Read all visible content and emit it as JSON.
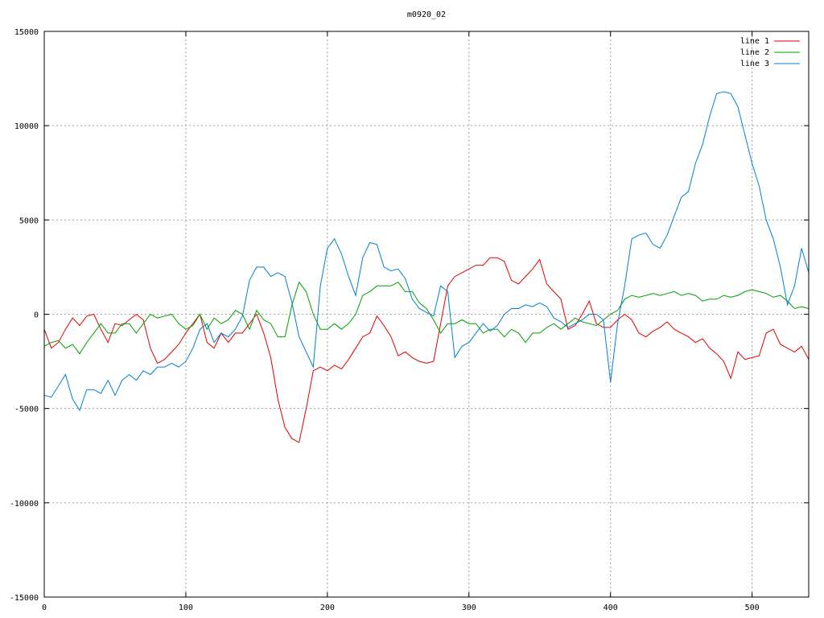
{
  "chart_data": {
    "type": "line",
    "title": "m0920_02",
    "xlabel": "",
    "ylabel": "",
    "xlim": [
      0,
      540
    ],
    "ylim": [
      -15000,
      15000
    ],
    "x_ticks": [
      0,
      100,
      200,
      300,
      400,
      500
    ],
    "y_ticks": [
      -15000,
      -10000,
      -5000,
      0,
      5000,
      10000,
      15000
    ],
    "grid": true,
    "legend_position": "top-right",
    "colors": {
      "line 1": "#e00000",
      "line 2": "#00a000",
      "line 3": "#0080d0"
    },
    "series": [
      {
        "name": "line 1",
        "x": [
          0,
          5,
          10,
          15,
          20,
          25,
          30,
          35,
          40,
          45,
          50,
          55,
          60,
          65,
          70,
          75,
          80,
          85,
          90,
          95,
          100,
          105,
          110,
          115,
          120,
          125,
          130,
          135,
          140,
          145,
          150,
          155,
          160,
          165,
          170,
          175,
          180,
          185,
          190,
          195,
          200,
          205,
          210,
          215,
          220,
          225,
          230,
          235,
          240,
          245,
          250,
          255,
          260,
          265,
          270,
          275,
          280,
          285,
          290,
          295,
          300,
          305,
          310,
          315,
          320,
          325,
          330,
          335,
          340,
          345,
          350,
          355,
          360,
          365,
          370,
          375,
          380,
          385,
          390,
          395,
          400,
          405,
          410,
          415,
          420,
          425,
          430,
          435,
          440,
          445,
          450,
          455,
          460,
          465,
          470,
          475,
          480,
          485,
          490,
          495,
          500,
          505,
          510,
          515,
          520,
          525,
          530,
          535,
          540
        ],
        "y": [
          -800,
          -1800,
          -1500,
          -800,
          -200,
          -600,
          -100,
          0,
          -800,
          -1500,
          -500,
          -600,
          -300,
          0,
          -300,
          -1800,
          -2600,
          -2400,
          -2000,
          -1600,
          -1000,
          -500,
          0,
          -1500,
          -1800,
          -1000,
          -1500,
          -1000,
          -1000,
          -500,
          0,
          -1000,
          -2300,
          -4500,
          -6000,
          -6600,
          -6800,
          -5000,
          -3000,
          -2800,
          -3000,
          -2700,
          -2900,
          -2400,
          -1800,
          -1200,
          -1000,
          -100,
          -600,
          -1200,
          -2200,
          -2000,
          -2300,
          -2500,
          -2600,
          -2500,
          -500,
          1500,
          2000,
          2200,
          2400,
          2600,
          2600,
          3000,
          3000,
          2800,
          1800,
          1600,
          2000,
          2400,
          2900,
          1600,
          1200,
          800,
          -800,
          -600,
          0,
          700,
          -500,
          -700,
          -700,
          -300,
          0,
          -300,
          -1000,
          -1200,
          -900,
          -700,
          -400,
          -800,
          -1000,
          -1200,
          -1500,
          -1300,
          -1800,
          -2100,
          -2500,
          -3400,
          -2000,
          -2400,
          -2300,
          -2200,
          -1000,
          -800,
          -1600,
          -1800,
          -2000,
          -1700,
          -2400
        ]
      },
      {
        "name": "line 2",
        "x": [
          0,
          5,
          10,
          15,
          20,
          25,
          30,
          35,
          40,
          45,
          50,
          55,
          60,
          65,
          70,
          75,
          80,
          85,
          90,
          95,
          100,
          105,
          110,
          115,
          120,
          125,
          130,
          135,
          140,
          145,
          150,
          155,
          160,
          165,
          170,
          175,
          180,
          185,
          190,
          195,
          200,
          205,
          210,
          215,
          220,
          225,
          230,
          235,
          240,
          245,
          250,
          255,
          260,
          265,
          270,
          275,
          280,
          285,
          290,
          295,
          300,
          305,
          310,
          315,
          320,
          325,
          330,
          335,
          340,
          345,
          350,
          355,
          360,
          365,
          370,
          375,
          380,
          385,
          390,
          395,
          400,
          405,
          410,
          415,
          420,
          425,
          430,
          435,
          440,
          445,
          450,
          455,
          460,
          465,
          470,
          475,
          480,
          485,
          490,
          495,
          500,
          505,
          510,
          515,
          520,
          525,
          530,
          535,
          540
        ],
        "y": [
          -1700,
          -1500,
          -1400,
          -1800,
          -1600,
          -2100,
          -1500,
          -1000,
          -500,
          -1000,
          -1000,
          -500,
          -500,
          -1000,
          -500,
          0,
          -200,
          -100,
          0,
          -500,
          -800,
          -600,
          0,
          -800,
          -200,
          -500,
          -300,
          200,
          0,
          -800,
          200,
          -300,
          -500,
          -1200,
          -1200,
          500,
          1700,
          1200,
          0,
          -800,
          -800,
          -500,
          -800,
          -500,
          0,
          1000,
          1200,
          1500,
          1500,
          1500,
          1700,
          1200,
          1200,
          600,
          300,
          -300,
          -1000,
          -500,
          -500,
          -300,
          -500,
          -500,
          -1000,
          -800,
          -800,
          -1200,
          -800,
          -1000,
          -1500,
          -1000,
          -1000,
          -700,
          -500,
          -800,
          -500,
          -200,
          -400,
          -500,
          -600,
          -300,
          0,
          200,
          800,
          1000,
          900,
          1000,
          1100,
          1000,
          1100,
          1200,
          1000,
          1100,
          1000,
          700,
          800,
          800,
          1000,
          900,
          1000,
          1200,
          1300,
          1200,
          1100,
          900,
          1000,
          700,
          300,
          400,
          300
        ]
      },
      {
        "name": "line 3",
        "x": [
          0,
          5,
          10,
          15,
          20,
          25,
          30,
          35,
          40,
          45,
          50,
          55,
          60,
          65,
          70,
          75,
          80,
          85,
          90,
          95,
          100,
          105,
          110,
          115,
          120,
          125,
          130,
          135,
          140,
          145,
          150,
          155,
          160,
          165,
          170,
          175,
          180,
          185,
          190,
          195,
          200,
          205,
          210,
          215,
          220,
          225,
          230,
          235,
          240,
          245,
          250,
          255,
          260,
          265,
          270,
          275,
          280,
          285,
          290,
          295,
          300,
          305,
          310,
          315,
          320,
          325,
          330,
          335,
          340,
          345,
          350,
          355,
          360,
          365,
          370,
          375,
          380,
          385,
          390,
          395,
          400,
          405,
          410,
          415,
          420,
          425,
          430,
          435,
          440,
          445,
          450,
          455,
          460,
          465,
          470,
          475,
          480,
          485,
          490,
          495,
          500,
          505,
          510,
          515,
          520,
          525,
          530,
          535,
          540
        ],
        "y": [
          -4300,
          -4400,
          -3800,
          -3200,
          -4500,
          -5100,
          -4000,
          -4000,
          -4200,
          -3500,
          -4300,
          -3500,
          -3200,
          -3500,
          -3000,
          -3200,
          -2800,
          -2800,
          -2600,
          -2800,
          -2500,
          -1800,
          -800,
          -500,
          -1500,
          -1000,
          -1200,
          -800,
          -100,
          1800,
          2500,
          2500,
          2000,
          2200,
          2000,
          600,
          -1200,
          -2000,
          -2800,
          1500,
          3500,
          4000,
          3200,
          2000,
          1000,
          3000,
          3800,
          3700,
          2500,
          2300,
          2400,
          1900,
          800,
          300,
          100,
          -100,
          1500,
          1200,
          -2300,
          -1700,
          -1500,
          -1000,
          -500,
          -900,
          -600,
          0,
          300,
          300,
          500,
          400,
          600,
          400,
          -200,
          -400,
          -700,
          -500,
          -300,
          0,
          0,
          -300,
          -3600,
          -500,
          1500,
          4000,
          4200,
          4300,
          3700,
          3500,
          4200,
          5200,
          6200,
          6500,
          8000,
          9000,
          10500,
          11700,
          11800,
          11700,
          11000,
          9500,
          8000,
          6800,
          5000,
          4000,
          2500,
          500,
          1500,
          3500,
          2200
        ]
      }
    ]
  }
}
